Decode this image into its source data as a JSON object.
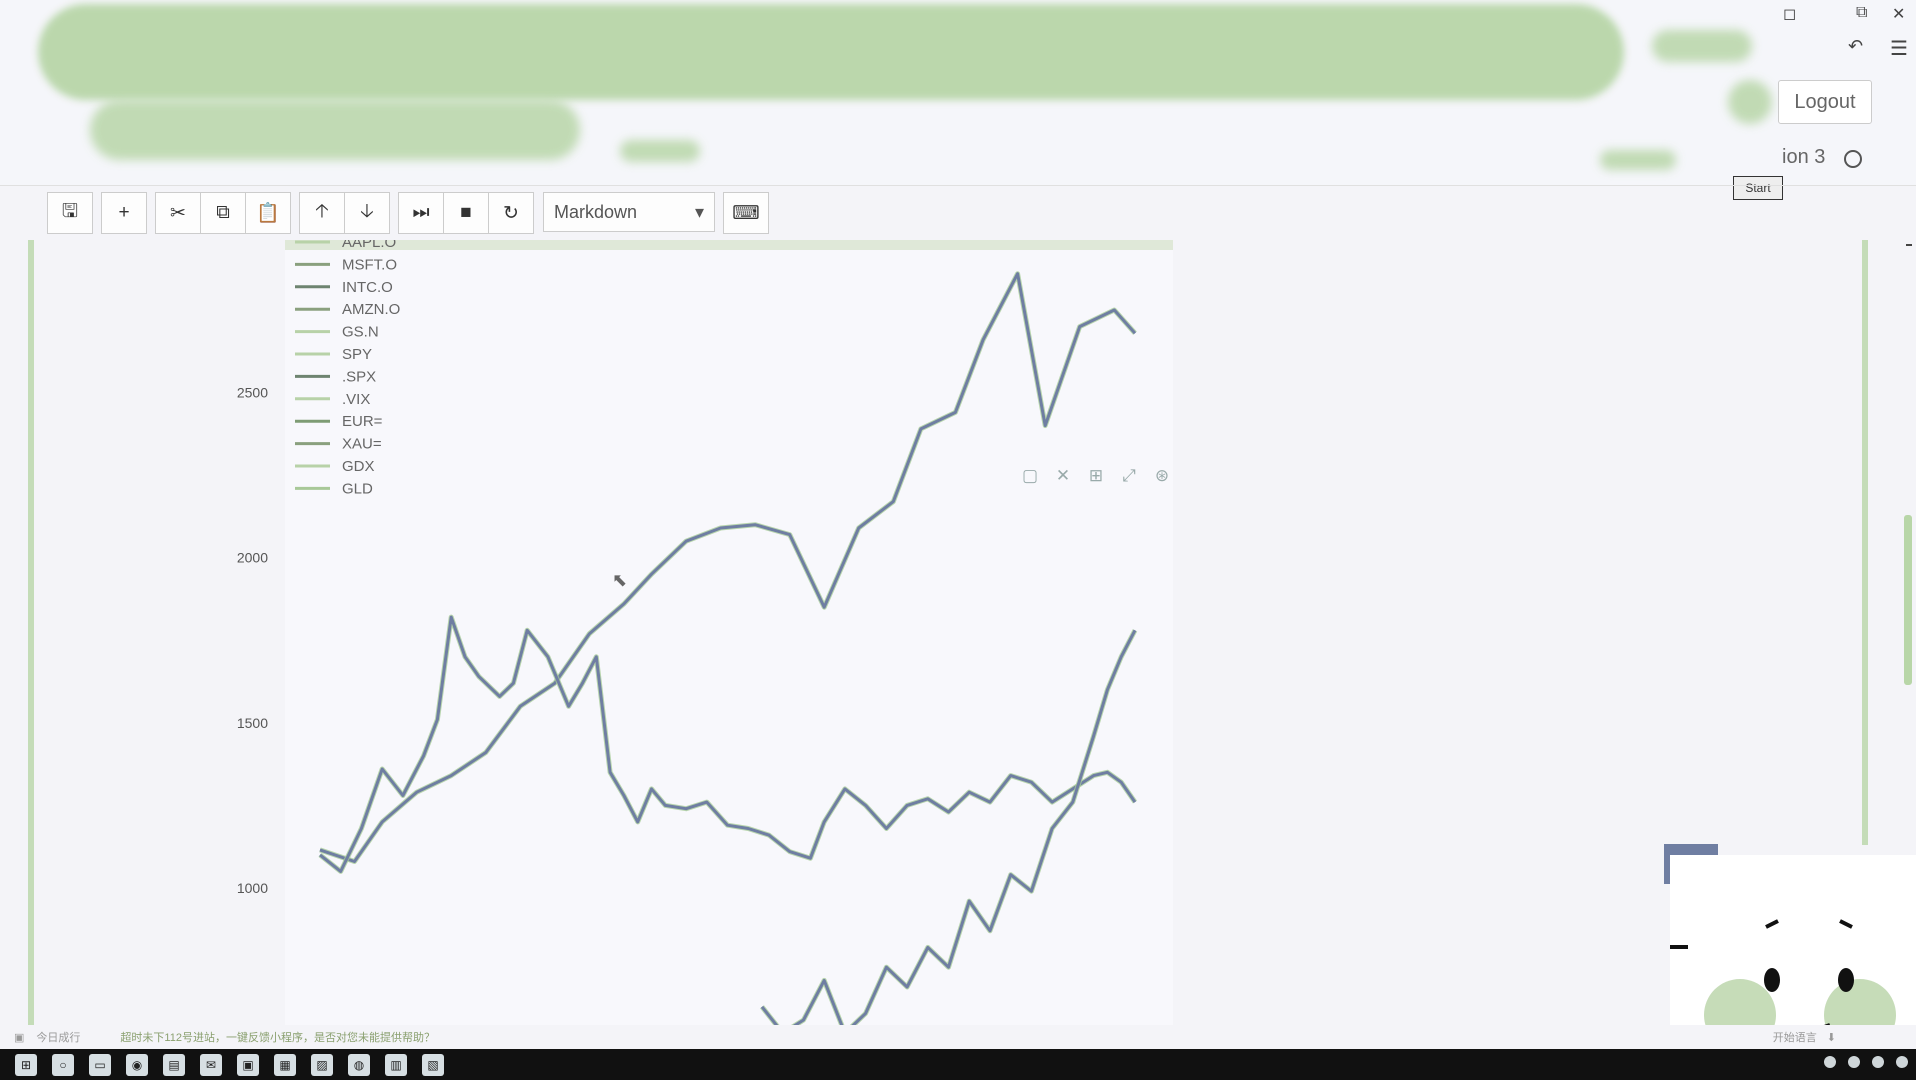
{
  "header": {
    "logout_label": "Logout",
    "kernel_name": "ion 3",
    "start_tag": "Start",
    "window_controls": [
      "square-icon",
      "restore-icon",
      "close-icon"
    ]
  },
  "toolbar": {
    "buttons": [
      {
        "name": "save-button",
        "icon": "save-icon",
        "glyph": "🖫"
      },
      {
        "name": "insert-cell-button",
        "icon": "plus-icon",
        "glyph": "+"
      },
      {
        "name": "cut-button",
        "icon": "scissors-icon",
        "glyph": "✂"
      },
      {
        "name": "copy-button",
        "icon": "copy-icon",
        "glyph": "⧉"
      },
      {
        "name": "paste-button",
        "icon": "paste-icon",
        "glyph": "📋"
      },
      {
        "name": "move-up-button",
        "icon": "arrow-up-icon",
        "glyph": "🡡"
      },
      {
        "name": "move-down-button",
        "icon": "arrow-down-icon",
        "glyph": "🡣"
      },
      {
        "name": "run-button",
        "icon": "run-icon",
        "glyph": "⏭"
      },
      {
        "name": "interrupt-button",
        "icon": "stop-icon",
        "glyph": "■"
      },
      {
        "name": "restart-button",
        "icon": "restart-icon",
        "glyph": "↻"
      }
    ],
    "cell_type": "Markdown",
    "cell_type_caret": "▾",
    "keyboard_glyph": "⌨"
  },
  "figure_toolbar": {
    "icons": [
      {
        "name": "figure-select-icon",
        "glyph": "▢"
      },
      {
        "name": "figure-close-icon",
        "glyph": "✕"
      },
      {
        "name": "figure-pan-icon",
        "glyph": "⊞"
      },
      {
        "name": "figure-zoom-icon",
        "glyph": "⤢"
      },
      {
        "name": "figure-settings-icon",
        "glyph": "⊛"
      }
    ]
  },
  "chart_data": {
    "type": "line",
    "yticks": [
      1000,
      1500,
      2000,
      2500
    ],
    "ylim": [
      600,
      2950
    ],
    "xlim": [
      0,
      118
    ],
    "legend": [
      "AAPL.O",
      "MSFT.O",
      "INTC.O",
      "AMZN.O",
      "GS.N",
      "SPY",
      ".SPX",
      ".VIX",
      "EUR=",
      "XAU=",
      "GDX",
      "GLD"
    ],
    "series": [
      {
        "name": ".SPX",
        "color": "#6f7ea2",
        "x": [
          0,
          5,
          9,
          14,
          19,
          24,
          29,
          34,
          39,
          44,
          48,
          53,
          58,
          63,
          68,
          73,
          78,
          83,
          87,
          92,
          96,
          101,
          105,
          110,
          115,
          118
        ],
        "values": [
          1115,
          1080,
          1200,
          1290,
          1340,
          1410,
          1550,
          1620,
          1770,
          1860,
          1950,
          2050,
          2090,
          2100,
          2070,
          1850,
          2090,
          2170,
          2390,
          2440,
          2660,
          2860,
          2400,
          2700,
          2750,
          2680
        ]
      },
      {
        "name": "XAU=",
        "color": "#6f7ea2",
        "x": [
          0,
          3,
          6,
          9,
          12,
          15,
          17,
          19,
          21,
          23,
          26,
          28,
          30,
          33,
          36,
          38,
          40,
          42,
          44,
          46,
          48,
          50,
          53,
          56,
          59,
          62,
          65,
          68,
          71,
          73,
          76,
          79,
          82,
          85,
          88,
          91,
          94,
          97,
          100,
          103,
          106,
          109,
          112,
          114,
          116,
          118
        ],
        "values": [
          1100,
          1050,
          1180,
          1360,
          1280,
          1400,
          1510,
          1820,
          1700,
          1640,
          1580,
          1620,
          1780,
          1700,
          1550,
          1620,
          1700,
          1350,
          1280,
          1200,
          1300,
          1250,
          1240,
          1260,
          1190,
          1180,
          1160,
          1110,
          1090,
          1200,
          1300,
          1250,
          1180,
          1250,
          1270,
          1230,
          1290,
          1260,
          1340,
          1320,
          1260,
          1300,
          1340,
          1350,
          1320,
          1260
        ]
      },
      {
        "name": "GDX",
        "color": "#6f7ea2",
        "x": [
          64,
          67,
          70,
          73,
          76,
          79,
          82,
          85,
          88,
          91,
          94,
          97,
          100,
          103,
          106,
          109,
          112,
          114,
          116,
          118
        ],
        "values": [
          640,
          560,
          600,
          720,
          560,
          620,
          760,
          700,
          820,
          760,
          960,
          870,
          1040,
          990,
          1180,
          1260,
          1460,
          1600,
          1700,
          1780
        ]
      }
    ]
  },
  "status_bar": {
    "left_text": "今日成行",
    "link_text": "超时未下112号进站，一键反馈小程序，是否对您未能提供帮助？",
    "right_text": "开始语言"
  },
  "taskbar": {
    "apps": [
      "windows-icon",
      "search-icon",
      "task-view-icon",
      "browser-icon",
      "folder-icon",
      "mail-icon",
      "notebook-icon",
      "calendar-icon",
      "photos-icon",
      "chat-icon",
      "terminal-icon",
      "store-icon"
    ]
  }
}
